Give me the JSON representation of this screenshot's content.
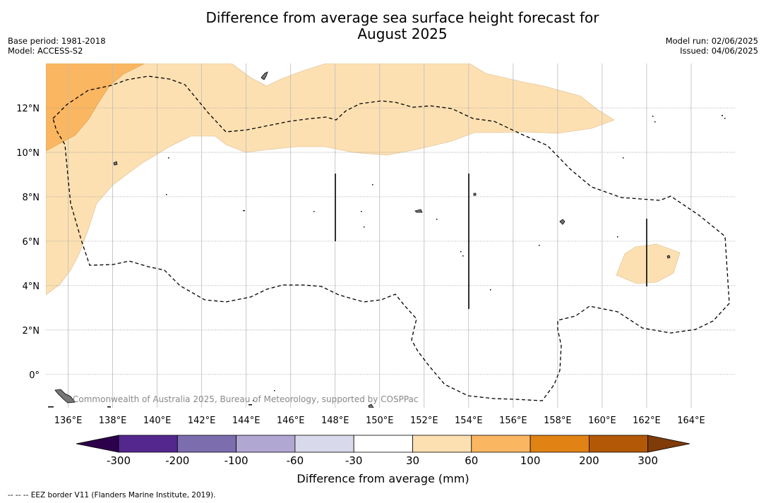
{
  "title_line1": "Difference from average sea surface height forecast for",
  "title_line2": "August 2025",
  "meta_left": [
    "Base period: 1981-2018",
    "Model: ACCESS-S2"
  ],
  "meta_right": [
    "Model run: 02/06/2025",
    "Issued: 04/06/2025"
  ],
  "copyright": "Commonwealth of Australia 2025, Bureau of Meteorology, supported by COSPPac",
  "axes": {
    "lon_ticks": [
      "136°E",
      "138°E",
      "140°E",
      "142°E",
      "144°E",
      "146°E",
      "148°E",
      "150°E",
      "152°E",
      "154°E",
      "156°E",
      "158°E",
      "160°E",
      "162°E",
      "164°E"
    ],
    "lat_ticks": [
      "12°N",
      "10°N",
      "8°N",
      "6°N",
      "4°N",
      "2°N",
      "0°"
    ],
    "lon_range": [
      135,
      166
    ],
    "lat_range": [
      -1.5,
      14
    ]
  },
  "colorbar": {
    "title": "Difference from average (mm)",
    "labels": [
      "-300",
      "-200",
      "-100",
      "-60",
      "-30",
      "30",
      "60",
      "100",
      "200",
      "300"
    ],
    "colors": [
      "#54278f",
      "#7c6daf",
      "#b0a8d2",
      "#d9d9ec",
      "#ffffff",
      "#fde0b2",
      "#fbb661",
      "#e08214",
      "#b35806"
    ],
    "under_color": "#2d004b",
    "over_color": "#7f3b08"
  },
  "legend_footnote": "--  --  -- EEZ border V11 (Flanders Marine Institute, 2019)."
}
